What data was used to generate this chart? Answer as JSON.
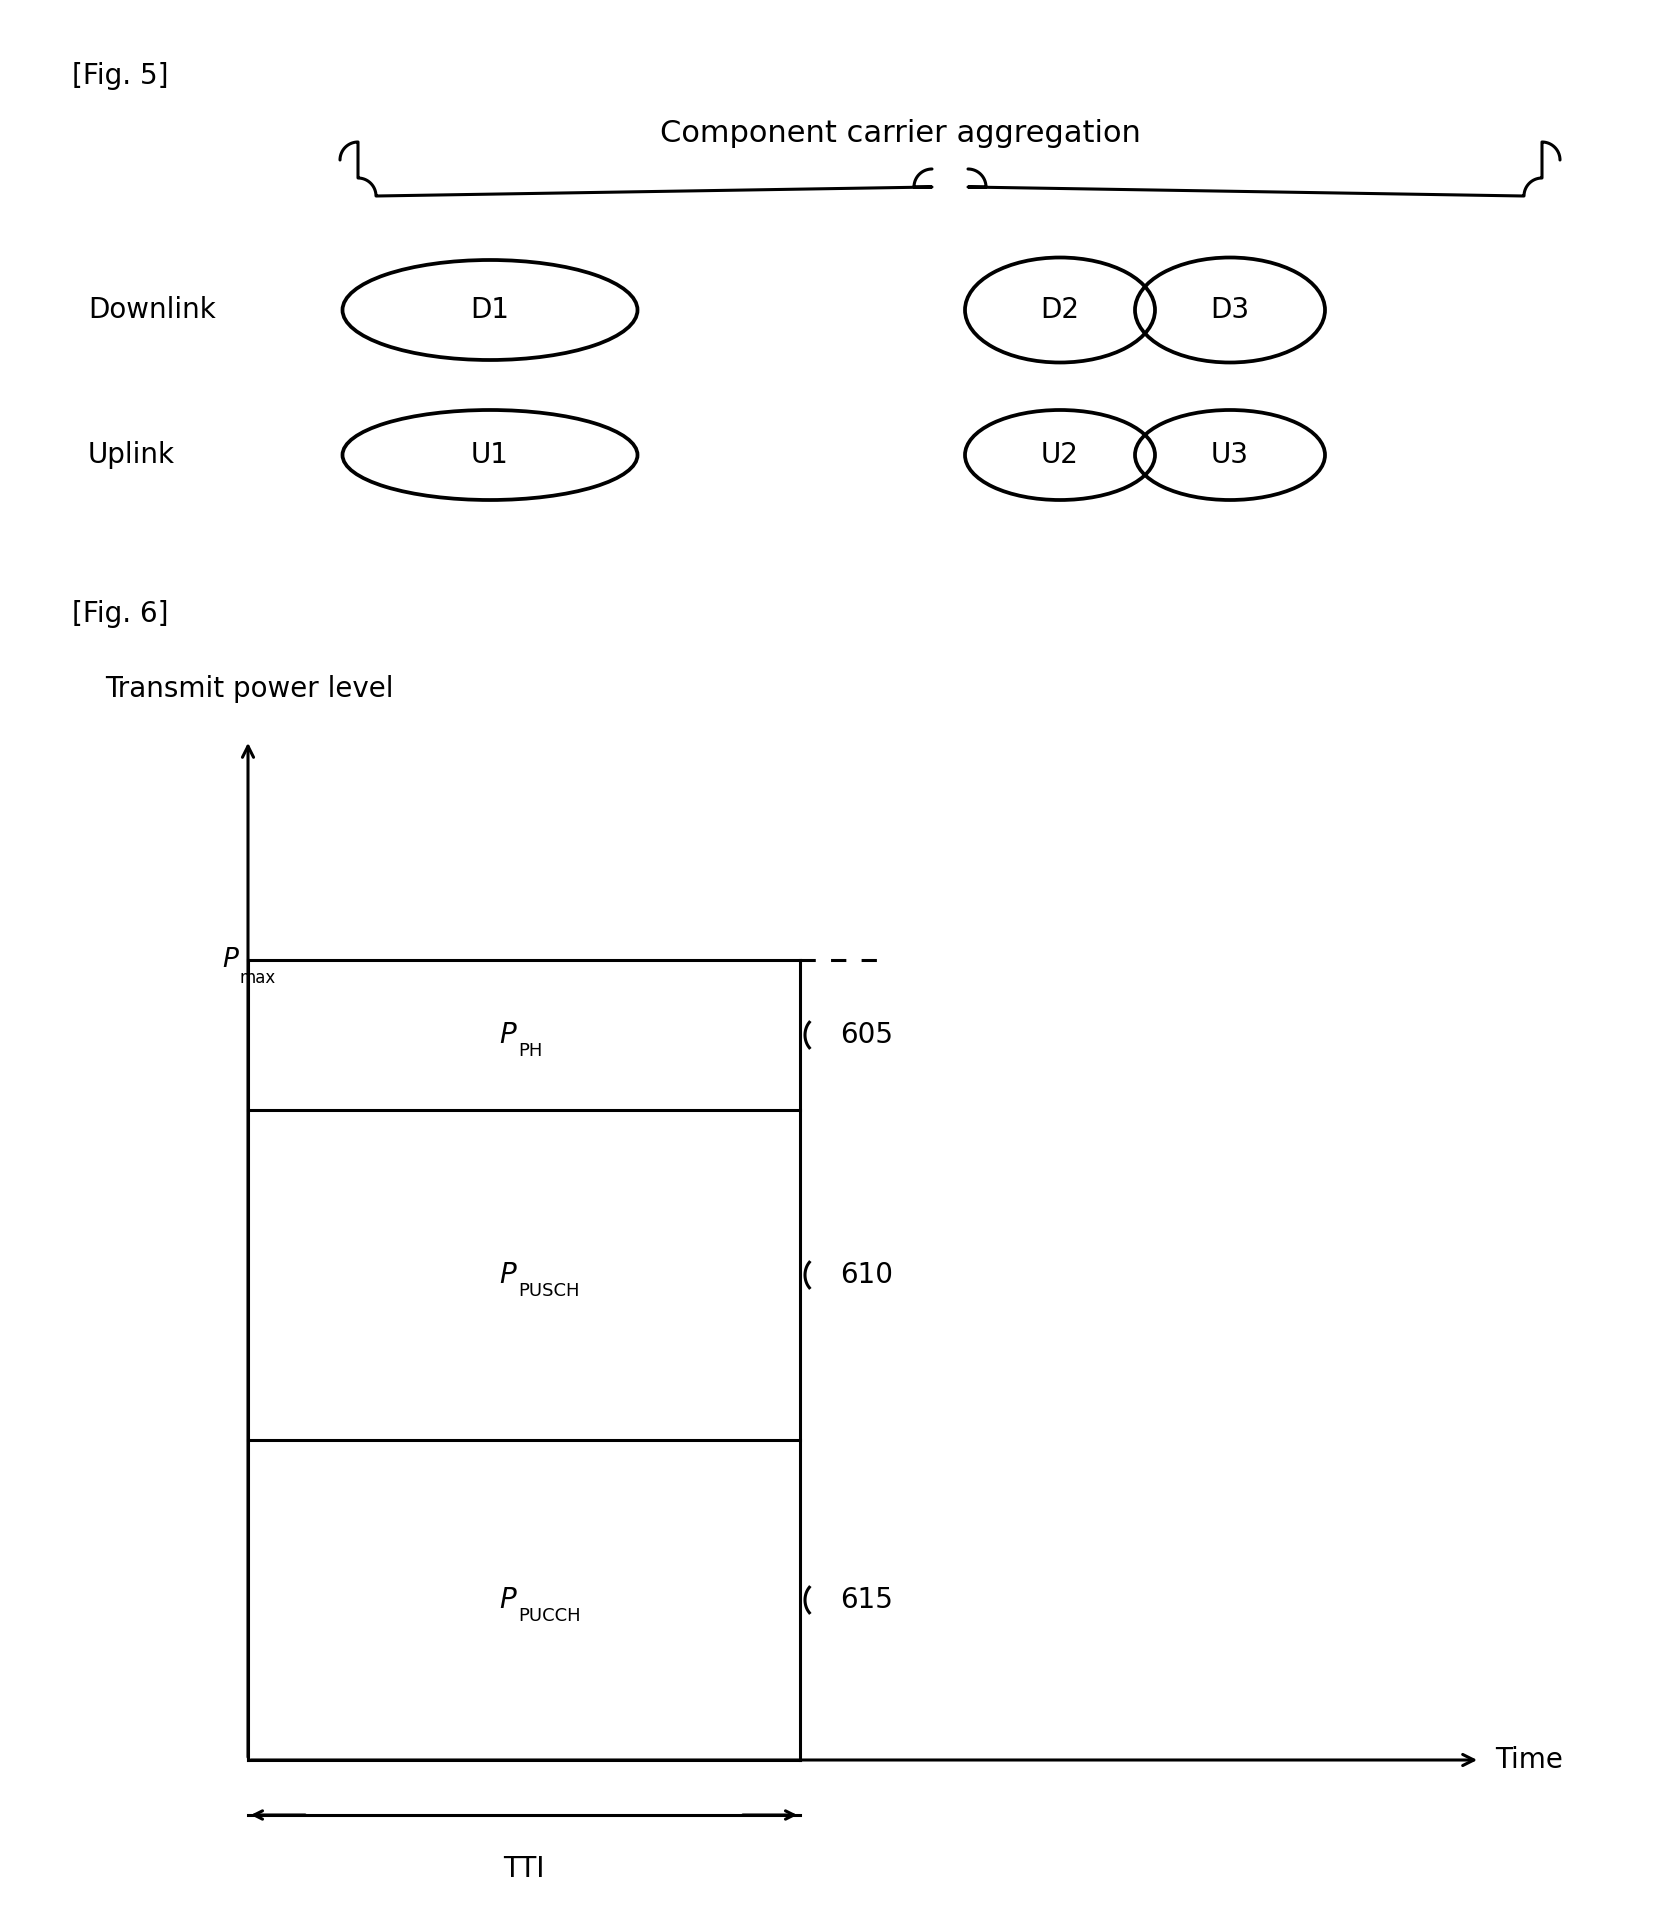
{
  "fig5_label": "[Fig. 5]",
  "fig6_label": "[Fig. 6]",
  "cca_title": "Component carrier aggregation",
  "downlink_label": "Downlink",
  "uplink_label": "Uplink",
  "d1_label": "D1",
  "d2_label": "D2",
  "d3_label": "D3",
  "u1_label": "U1",
  "u2_label": "U2",
  "u3_label": "U3",
  "transmit_power_label": "Transmit power level",
  "time_label": "Time",
  "tti_label": "TTI",
  "ref_605": "605",
  "ref_610": "610",
  "ref_615": "615",
  "line_color": "#000000",
  "bg_color": "#ffffff",
  "font_size_label": 20,
  "font_size_title": 22,
  "font_size_ellipse": 20,
  "font_size_ref": 20
}
